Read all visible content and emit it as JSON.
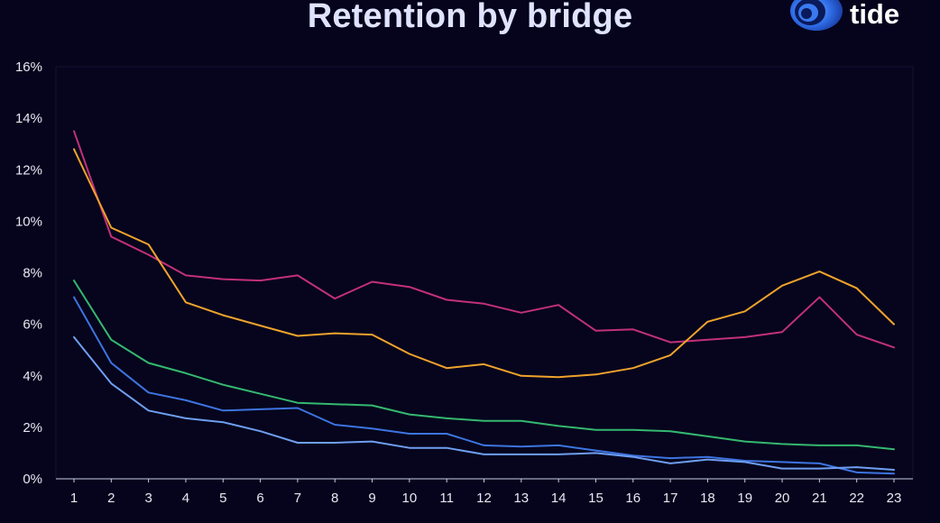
{
  "chart_data": {
    "type": "line",
    "title": "Retention by bridge",
    "xlabel": "",
    "ylabel": "",
    "ylim": [
      0,
      16
    ],
    "yticks": [
      "0%",
      "2%",
      "4%",
      "6%",
      "8%",
      "10%",
      "12%",
      "14%",
      "16%"
    ],
    "ytick_values": [
      0,
      2,
      4,
      6,
      8,
      10,
      12,
      14,
      16
    ],
    "categories": [
      "1",
      "2",
      "3",
      "4",
      "5",
      "6",
      "7",
      "8",
      "9",
      "10",
      "11",
      "12",
      "13",
      "14",
      "15",
      "16",
      "17",
      "18",
      "19",
      "20",
      "21",
      "22",
      "23"
    ],
    "grid": false,
    "legend": "none",
    "series": [
      {
        "name": "magenta",
        "color": "#c2307a",
        "values": [
          13.5,
          9.4,
          8.7,
          7.9,
          7.75,
          7.7,
          7.9,
          7.0,
          7.65,
          7.45,
          6.95,
          6.8,
          6.45,
          6.75,
          5.75,
          5.8,
          5.3,
          5.4,
          5.5,
          5.7,
          7.05,
          5.6,
          5.1
        ]
      },
      {
        "name": "orange",
        "color": "#f0a32c",
        "values": [
          12.8,
          9.75,
          9.1,
          6.85,
          6.35,
          5.95,
          5.55,
          5.65,
          5.6,
          4.85,
          4.3,
          4.45,
          4.0,
          3.95,
          4.05,
          4.3,
          4.8,
          6.1,
          6.5,
          7.5,
          8.05,
          7.4,
          6.0
        ]
      },
      {
        "name": "green",
        "color": "#35b86f",
        "values": [
          7.7,
          5.4,
          4.5,
          4.1,
          3.65,
          3.3,
          2.95,
          2.9,
          2.85,
          2.5,
          2.35,
          2.25,
          2.25,
          2.05,
          1.9,
          1.9,
          1.85,
          1.65,
          1.45,
          1.35,
          1.3,
          1.3,
          1.15
        ]
      },
      {
        "name": "blue",
        "color": "#3d74e0",
        "values": [
          7.05,
          4.5,
          3.35,
          3.05,
          2.65,
          2.7,
          2.75,
          2.1,
          1.95,
          1.75,
          1.75,
          1.3,
          1.25,
          1.3,
          1.1,
          0.9,
          0.8,
          0.85,
          0.7,
          0.65,
          0.6,
          0.25,
          0.2
        ]
      },
      {
        "name": "light-blue",
        "color": "#6f9ef0",
        "values": [
          5.5,
          3.7,
          2.65,
          2.35,
          2.2,
          1.85,
          1.4,
          1.4,
          1.45,
          1.2,
          1.2,
          0.95,
          0.95,
          0.95,
          1.0,
          0.85,
          0.6,
          0.75,
          0.65,
          0.4,
          0.4,
          0.45,
          0.35
        ]
      }
    ]
  },
  "brand": {
    "name": "tide"
  },
  "colors": {
    "background": "#05041c",
    "plot_background": "#06051d",
    "axis": "#c9cde8",
    "title": "#dfe3ff"
  }
}
